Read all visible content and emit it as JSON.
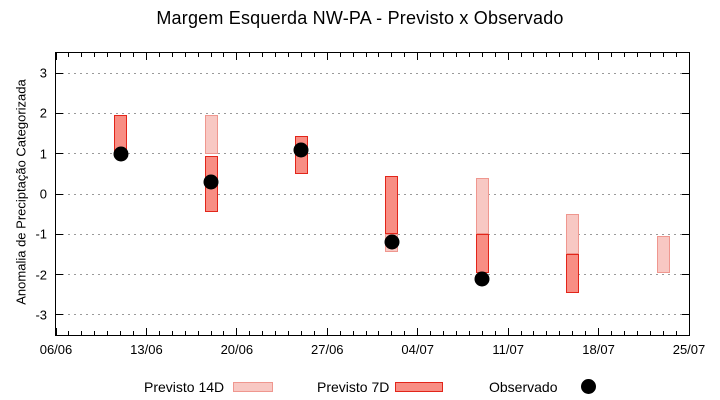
{
  "chart_data": {
    "type": "bar",
    "subtype": "forecast-range-bars-with-observed-points",
    "title": "Margem Esquerda NW-PA - Previsto x Observado",
    "xlabel": "",
    "ylabel": "Anomalia de Preciptação Categorizada",
    "ylim": [
      -3.5,
      3.5
    ],
    "yticks": [
      3,
      2,
      1,
      0,
      -1,
      -2,
      -3
    ],
    "xtick_labels": [
      "06/06",
      "13/06",
      "20/06",
      "27/06",
      "04/07",
      "11/07",
      "18/07",
      "25/07"
    ],
    "xtick_days": [
      0,
      7,
      14,
      21,
      28,
      35,
      42,
      49
    ],
    "x_range_days": 49,
    "x_minor_tick_interval_days": 1,
    "grid": "horizontal-dotted",
    "grid_color": "#9a9a9a",
    "axis_color": "#000000",
    "legend_position": "bottom-center",
    "series": [
      {
        "name": "Previsto 14D",
        "kind": "range-bar",
        "fill": "#f8c8c3",
        "stroke": "#ef978f",
        "ranges": [
          {
            "day": 12,
            "low": 1.0,
            "high": 1.95
          },
          {
            "day": 26,
            "low": -1.45,
            "high": -1.0
          },
          {
            "day": 33,
            "low": -1.0,
            "high": 0.4
          },
          {
            "day": 40,
            "low": -1.5,
            "high": -0.5
          },
          {
            "day": 47,
            "low": -1.95,
            "high": -1.05
          }
        ]
      },
      {
        "name": "Previsto 7D",
        "kind": "range-bar",
        "fill": "#f88e84",
        "stroke": "#e2251a",
        "ranges": [
          {
            "day": 5,
            "low": 1.0,
            "high": 1.95
          },
          {
            "day": 12,
            "low": -0.45,
            "high": 0.95
          },
          {
            "day": 19,
            "low": 0.5,
            "high": 1.45
          },
          {
            "day": 26,
            "low": -1.0,
            "high": 0.45
          },
          {
            "day": 33,
            "low": -1.95,
            "high": -1.0
          },
          {
            "day": 40,
            "low": -2.45,
            "high": -1.5
          }
        ]
      },
      {
        "name": "Observado",
        "kind": "scatter",
        "color": "#000000",
        "points": [
          {
            "day": 5,
            "value": 1.0
          },
          {
            "day": 12,
            "value": 0.3
          },
          {
            "day": 19,
            "value": 1.1
          },
          {
            "day": 26,
            "value": -1.2
          },
          {
            "day": 33,
            "value": -2.1
          }
        ]
      }
    ]
  },
  "legend": {
    "items": [
      {
        "label": "Previsto 14D",
        "swatch": "range-bar",
        "fill": "#f8c8c3",
        "stroke": "#ef978f"
      },
      {
        "label": "Previsto 7D",
        "swatch": "range-bar",
        "fill": "#f88e84",
        "stroke": "#e2251a"
      },
      {
        "label": "Observado",
        "swatch": "dot",
        "fill": "#000000",
        "stroke": "#000000"
      }
    ]
  }
}
